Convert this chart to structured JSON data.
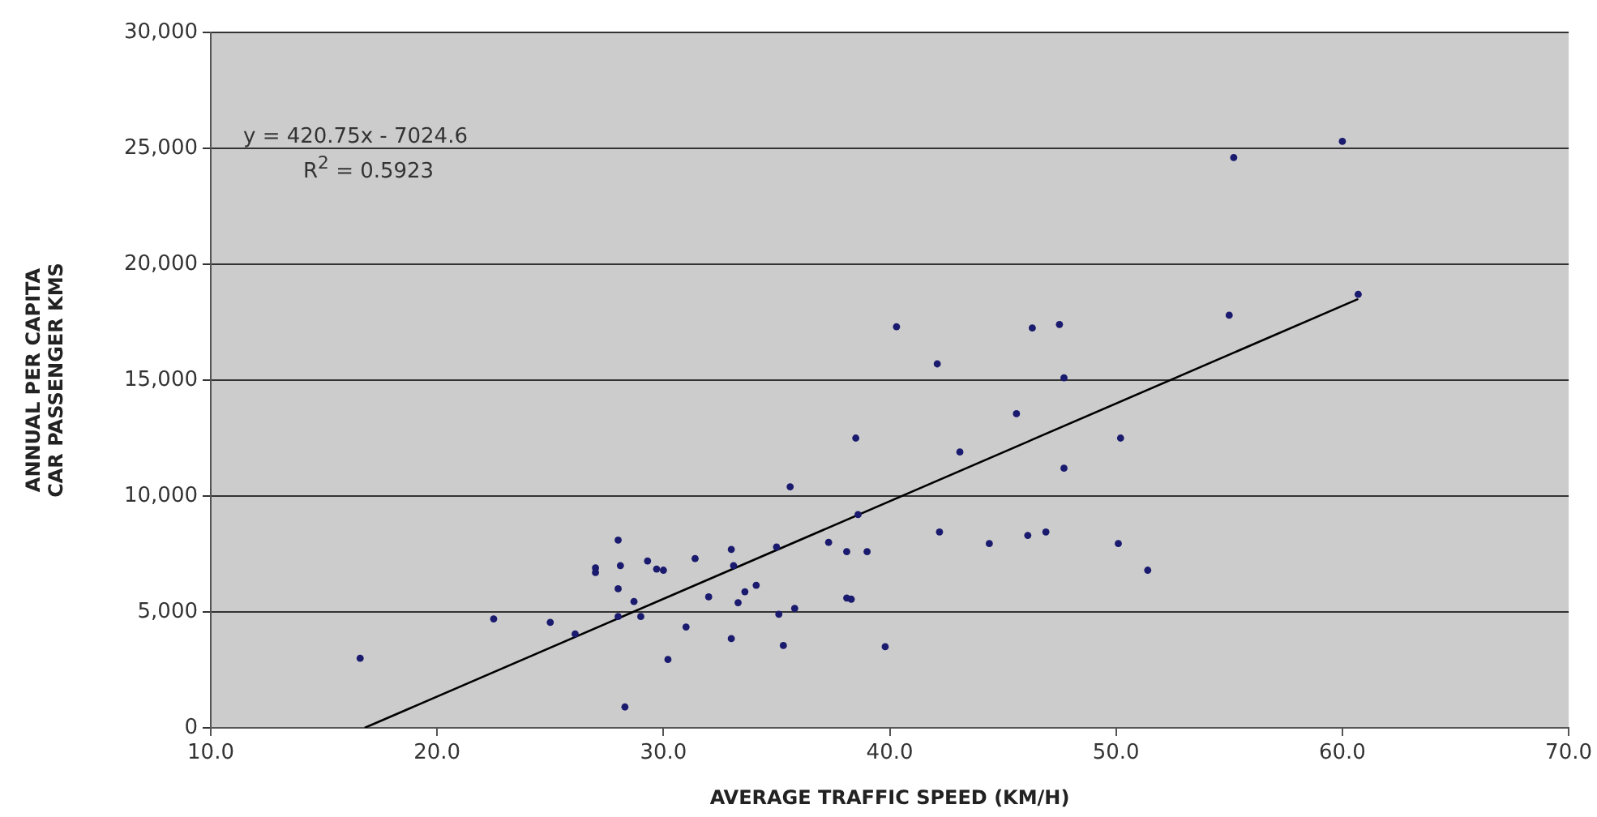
{
  "chart_data": {
    "type": "scatter",
    "xlabel": "AVERAGE TRAFFIC SPEED (KM/H)",
    "ylabel": "ANNUAL PER CAPITA CAR PASSENGER KMS",
    "annotations": [
      "y = 420.75x - 7024.6",
      "R$^{2}$ = 0.5923"
    ],
    "xlim": [
      10,
      70
    ],
    "xticks": [
      {
        "value": 10,
        "label": "10.0"
      },
      {
        "value": 20,
        "label": "20.0"
      },
      {
        "value": 30,
        "label": "30.0"
      },
      {
        "value": 40,
        "label": "40.0"
      },
      {
        "value": 50,
        "label": "50.0"
      },
      {
        "value": 60,
        "label": "60.0"
      },
      {
        "value": 70,
        "label": "70.0"
      }
    ],
    "ylim": [
      0,
      30000
    ],
    "yticks": [
      {
        "value": 0,
        "label": "0"
      },
      {
        "value": 5000,
        "label": "5,000"
      },
      {
        "value": 10000,
        "label": "10,000"
      },
      {
        "value": 15000,
        "label": "15,000"
      },
      {
        "value": 20000,
        "label": "20,000"
      },
      {
        "value": 25000,
        "label": "25,000"
      },
      {
        "value": 30000,
        "label": "30,000"
      }
    ],
    "grid": "y",
    "legend": false,
    "marker": "circle",
    "series": [
      {
        "color": "#1a1a6e",
        "x": [
          55.2,
          60.0,
          60.7,
          55.0,
          40.3,
          42.1,
          46.3,
          47.5,
          47.7,
          45.6,
          43.1,
          50.2,
          47.7,
          42.2,
          44.4,
          46.1,
          46.9,
          50.1,
          51.4,
          39.8,
          38.5,
          35.6,
          38.6,
          28.0,
          35.0,
          37.3,
          38.1,
          39.0,
          33.0,
          33.1,
          31.4,
          29.3,
          28.1,
          27.0,
          27.0,
          29.7,
          30.0,
          34.1,
          33.6,
          28.0,
          32.0,
          33.3,
          38.1,
          38.3,
          28.7,
          35.8,
          35.1,
          28.0,
          29.0,
          22.5,
          25.0,
          31.0,
          26.1,
          33.0,
          35.3,
          16.6,
          30.2,
          28.3
        ],
        "values": [
          24600,
          25300,
          18700,
          17800,
          17300,
          15700,
          17250,
          17400,
          15100,
          13550,
          11900,
          12500,
          11200,
          8450,
          7950,
          8300,
          8450,
          7950,
          6800,
          3500,
          12500,
          10400,
          9200,
          8100,
          7800,
          8000,
          7600,
          7600,
          7700,
          7000,
          7300,
          7200,
          7000,
          6900,
          6700,
          6850,
          6800,
          6150,
          5870,
          6000,
          5650,
          5400,
          5600,
          5550,
          5450,
          5150,
          4900,
          4800,
          4800,
          4700,
          4550,
          4350,
          4050,
          3850,
          3550,
          3000,
          2950,
          900
        ]
      },
      {
        "type": "line",
        "color": "#000000",
        "marker": "none",
        "x": [
          16.8,
          60.7
        ],
        "values": [
          0,
          18500
        ]
      }
    ]
  }
}
